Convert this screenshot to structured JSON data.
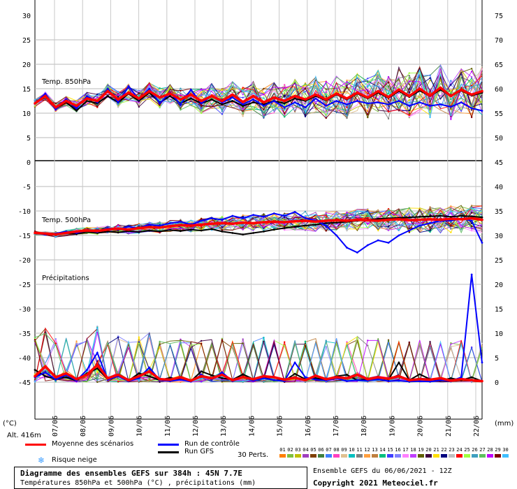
{
  "chart_data": [
    {
      "type": "line",
      "title": "Temp. 850hPa",
      "y_left_range": [
        0,
        30
      ],
      "y_left_ticks": [
        "30",
        "25",
        "20",
        "15",
        "10",
        "5",
        "0"
      ],
      "y_right_ticks": [
        "75",
        "70",
        "65",
        "60",
        "55",
        "50"
      ],
      "x_labels": [
        "07/06",
        "08/06",
        "09/06",
        "10/06",
        "11/06",
        "12/06",
        "13/06",
        "14/06",
        "15/06",
        "16/06",
        "17/06",
        "18/06",
        "19/06",
        "20/06",
        "21/06",
        "22/06"
      ],
      "series": [
        {
          "name": "Moyenne des scénarios",
          "color": "#ff0000",
          "values": [
            12,
            13.5,
            11.2,
            12.5,
            11.5,
            13,
            12.5,
            14.5,
            12.8,
            14.2,
            13,
            14.5,
            13.2,
            14,
            12.8,
            13.8,
            12.5,
            13.5,
            12.5,
            13.8,
            12.3,
            13.5,
            12.2,
            13.2,
            12.5,
            13.5,
            12.8,
            13.8,
            12.8,
            14,
            13,
            14.2,
            13.2,
            14.5,
            13.3,
            14.8,
            13.5,
            15,
            13.6,
            15.2,
            13.5,
            14.8,
            13.8,
            14.5
          ]
        },
        {
          "name": "Run de contrôle",
          "color": "#0000ff",
          "values": [
            12,
            14,
            10.8,
            12.8,
            11,
            13.5,
            12.2,
            15,
            12.2,
            15.5,
            12.8,
            15,
            12,
            14.2,
            11.8,
            14.8,
            12,
            13.5,
            12.2,
            13.2,
            11.8,
            12.8,
            11.5,
            12.5,
            11.2,
            12.2,
            11.2,
            13,
            11.5,
            12.5,
            11.8,
            12.5,
            12,
            12.2,
            11.8,
            12.5,
            11.5,
            12.2,
            11.5,
            11.8,
            11.3,
            12.2,
            11,
            10.5
          ]
        },
        {
          "name": "Run GFS",
          "color": "#000000",
          "values": [
            12,
            13.5,
            11,
            12.2,
            10.5,
            12.5,
            12,
            13.5,
            12.2,
            14,
            12.5,
            14.2,
            12.2,
            13.5,
            12,
            13,
            12,
            12.8,
            11.8,
            12.5,
            11.5,
            12.2,
            11.8,
            12.5,
            12,
            13,
            12.5,
            13.5,
            12.6,
            13.8,
            12.8,
            14,
            13,
            14.2,
            13.1,
            14.5,
            13.3,
            14.6,
            13.5,
            14.8,
            13.5,
            14.6,
            13.6,
            14.2
          ]
        }
      ]
    },
    {
      "type": "line",
      "title": "Temp. 500hPa",
      "y_left_range": [
        -20,
        -5
      ],
      "y_left_ticks": [
        "-5",
        "-10",
        "-15",
        "-20"
      ],
      "y_right_ticks": [
        "45",
        "40",
        "35",
        "30",
        "25"
      ],
      "series": [
        {
          "name": "Moyenne des scénarios",
          "color": "#ff0000",
          "values": [
            -14.5,
            -14.6,
            -14.8,
            -14.5,
            -14.2,
            -14,
            -14.1,
            -13.8,
            -13.6,
            -13.8,
            -13.5,
            -13.3,
            -13.4,
            -13.1,
            -12.9,
            -13,
            -12.8,
            -12.6,
            -12.5,
            -12.6,
            -12.4,
            -12.5,
            -12.3,
            -12.2,
            -12.3,
            -12.1,
            -12,
            -12.2,
            -12,
            -11.9,
            -12,
            -11.8,
            -11.9,
            -12,
            -11.8,
            -11.7,
            -11.9,
            -11.8,
            -11.7,
            -11.8,
            -11.6,
            -11.7,
            -11.5,
            -11.8
          ]
        },
        {
          "name": "Run de contrôle",
          "color": "#0000ff",
          "values": [
            -14.5,
            -14.8,
            -14.6,
            -14.2,
            -14.5,
            -14,
            -14.3,
            -13.5,
            -13.8,
            -13.2,
            -13.5,
            -12.8,
            -13,
            -12.5,
            -12.2,
            -12.8,
            -12,
            -11.5,
            -11.8,
            -11,
            -11.5,
            -10.8,
            -11.2,
            -10.5,
            -11,
            -10.2,
            -11.5,
            -12,
            -13,
            -15,
            -17.5,
            -18.5,
            -17,
            -16,
            -16.5,
            -15,
            -14,
            -13,
            -12.5,
            -12,
            -12,
            -11.5,
            -12,
            -16.5
          ]
        },
        {
          "name": "Run GFS",
          "color": "#000000",
          "values": [
            -14.5,
            -14.6,
            -14.8,
            -14.5,
            -14.7,
            -14.3,
            -14.5,
            -14.2,
            -14.4,
            -14.1,
            -14.3,
            -14,
            -14.2,
            -13.9,
            -14.1,
            -13.8,
            -14,
            -13.7,
            -14.2,
            -14.5,
            -14.8,
            -14.5,
            -14.2,
            -13.8,
            -13.5,
            -13.2,
            -13,
            -12.8,
            -12.5,
            -12.4,
            -12.2,
            -12,
            -11.8,
            -11.6,
            -11.5,
            -11.4,
            -11.3,
            -11.2,
            -11.1,
            -11,
            -11.2,
            -11,
            -11.1,
            -11.3
          ]
        }
      ]
    },
    {
      "type": "line",
      "title": "Précipitations",
      "y_right_range": [
        0,
        20
      ],
      "y_right_ticks": [
        "20",
        "15",
        "10",
        "5",
        "0"
      ],
      "y_left_ticks": [
        "-25",
        "-30",
        "-35",
        "-40",
        "-45"
      ],
      "series": [
        {
          "name": "Moyenne des scénarios",
          "color": "#ff0000",
          "values": [
            1.2,
            3.2,
            1.0,
            1.8,
            0.6,
            1.5,
            3.5,
            0.8,
            1.5,
            0.4,
            1.2,
            2.2,
            0.6,
            0.5,
            1.0,
            0.3,
            1.2,
            0.8,
            1.5,
            0.4,
            1.0,
            0.6,
            1.2,
            1.0,
            0.5,
            0.9,
            0.4,
            1.3,
            0.6,
            1.0,
            0.8,
            1.5,
            0.6,
            1.0,
            0.7,
            1.2,
            0.4,
            0.6,
            0.5,
            0.8,
            0.3,
            0.6,
            0.4,
            0.2
          ]
        },
        {
          "name": "Run de contrôle",
          "color": "#0000ff",
          "values": [
            1,
            2,
            0.5,
            1.5,
            0.3,
            2.5,
            6,
            0.5,
            1.2,
            0.2,
            0.8,
            3,
            0.4,
            0.2,
            0.5,
            0.1,
            1.5,
            0.5,
            2,
            0.2,
            1,
            0.3,
            0.8,
            0.4,
            0.2,
            4,
            1,
            0.5,
            0.3,
            0.8,
            0.2,
            0.4,
            0.3,
            0.6,
            0.2,
            0.3,
            0.1,
            0.2,
            0.1,
            0.4,
            0.2,
            1,
            22,
            4
          ]
        },
        {
          "name": "Run GFS",
          "color": "#000000",
          "values": [
            2.5,
            1.2,
            0.6,
            1.0,
            0.3,
            1.8,
            2.8,
            0.6,
            1.4,
            0.3,
            1.8,
            1.2,
            0.4,
            0.9,
            0.5,
            0.2,
            2.2,
            1.4,
            0.8,
            0.5,
            1.6,
            0.6,
            0.9,
            0.4,
            0.3,
            1.7,
            0.6,
            0.8,
            0.5,
            1.2,
            1.5,
            0.4,
            0.6,
            1.1,
            0.5,
            4.0,
            0.4,
            1.6,
            0.6,
            0.3,
            0.8,
            0.4,
            1.0,
            0.2
          ]
        }
      ]
    }
  ],
  "axis_units": {
    "left": "(°C)",
    "right": "(mm)"
  },
  "altitude": "Alt. 416m",
  "legend": {
    "mean": "Moyenne des scénarios",
    "control": "Run de contrôle",
    "gfs": "Run GFS",
    "perts_label": "30 Perts.",
    "snow_risk": "Risque neige",
    "mean_color": "#ff0000",
    "control_color": "#0000ff",
    "gfs_color": "#000000"
  },
  "perts": [
    {
      "n": "01",
      "c": "#ff7f00"
    },
    {
      "n": "02",
      "c": "#7fbf3f"
    },
    {
      "n": "03",
      "c": "#bfbf00"
    },
    {
      "n": "04",
      "c": "#9f3fbf"
    },
    {
      "n": "05",
      "c": "#7f3f00"
    },
    {
      "n": "06",
      "c": "#3f7f3f"
    },
    {
      "n": "07",
      "c": "#3f7fff"
    },
    {
      "n": "08",
      "c": "#ff3fbf"
    },
    {
      "n": "09",
      "c": "#e0c090"
    },
    {
      "n": "10",
      "c": "#00bfbf"
    },
    {
      "n": "11",
      "c": "#7f7f7f"
    },
    {
      "n": "12",
      "c": "#ff9f3f"
    },
    {
      "n": "13",
      "c": "#bf7f3f"
    },
    {
      "n": "14",
      "c": "#00bf7f"
    },
    {
      "n": "15",
      "c": "#3f3fff"
    },
    {
      "n": "16",
      "c": "#7f7fff"
    },
    {
      "n": "17",
      "c": "#ff7fff"
    },
    {
      "n": "18",
      "c": "#bf3fff"
    },
    {
      "n": "19",
      "c": "#5f5f00"
    },
    {
      "n": "20",
      "c": "#3f003f"
    },
    {
      "n": "21",
      "c": "#ffdf00"
    },
    {
      "n": "22",
      "c": "#00007f"
    },
    {
      "n": "23",
      "c": "#bfbfbf"
    },
    {
      "n": "24",
      "c": "#ff0000"
    },
    {
      "n": "25",
      "c": "#9fff3f"
    },
    {
      "n": "26",
      "c": "#3f9fbf"
    },
    {
      "n": "27",
      "c": "#5fbf5f"
    },
    {
      "n": "28",
      "c": "#bf00ff"
    },
    {
      "n": "29",
      "c": "#7f0000"
    },
    {
      "n": "30",
      "c": "#3fbfff"
    }
  ],
  "title_box": {
    "line1": "Diagramme des ensembles GEFS sur 384h : 45N 7.7E",
    "line2": "Températures 850hPa et 500hPa (°C) , précipitations (mm)"
  },
  "info_box": {
    "line1": "Ensemble GEFS du 06/06/2021 - 12Z",
    "line2": "Copyright 2021 Meteociel.fr"
  }
}
